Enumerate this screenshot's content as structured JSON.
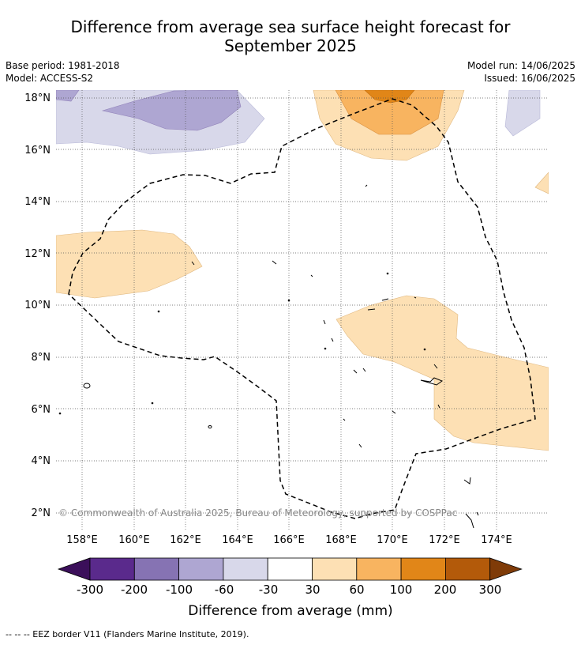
{
  "title_line1": "Difference from average sea surface height forecast for",
  "title_line2": "September 2025",
  "base_period": "Base period: 1981-2018",
  "model": "Model: ACCESS-S2",
  "model_run": "Model run: 14/06/2025",
  "issued": "Issued: 16/06/2025",
  "copyright": "© Commonwealth of Australia 2025, Bureau of Meteorology, supported by COSPPac",
  "lat_labels": [
    "18°N",
    "16°N",
    "14°N",
    "12°N",
    "10°N",
    "8°N",
    "6°N",
    "4°N",
    "2°N"
  ],
  "lon_labels": [
    "158°E",
    "160°E",
    "162°E",
    "164°E",
    "166°E",
    "168°E",
    "170°E",
    "172°E",
    "174°E"
  ],
  "colorbar": {
    "label": "Difference from average (mm)",
    "ticks": [
      "-300",
      "-200",
      "-100",
      "-60",
      "-30",
      "30",
      "60",
      "100",
      "200",
      "300"
    ],
    "colors": [
      "#3b0f5a",
      "#5a2a8c",
      "#8673b3",
      "#aea6d2",
      "#d8d8ea",
      "#ffffff",
      "#fde0b4",
      "#f8b460",
      "#e18618",
      "#b35a0a",
      "#7f3b08"
    ]
  },
  "footer": "--  --  -- EEZ border V11 (Flanders Marine Institute, 2019)."
}
